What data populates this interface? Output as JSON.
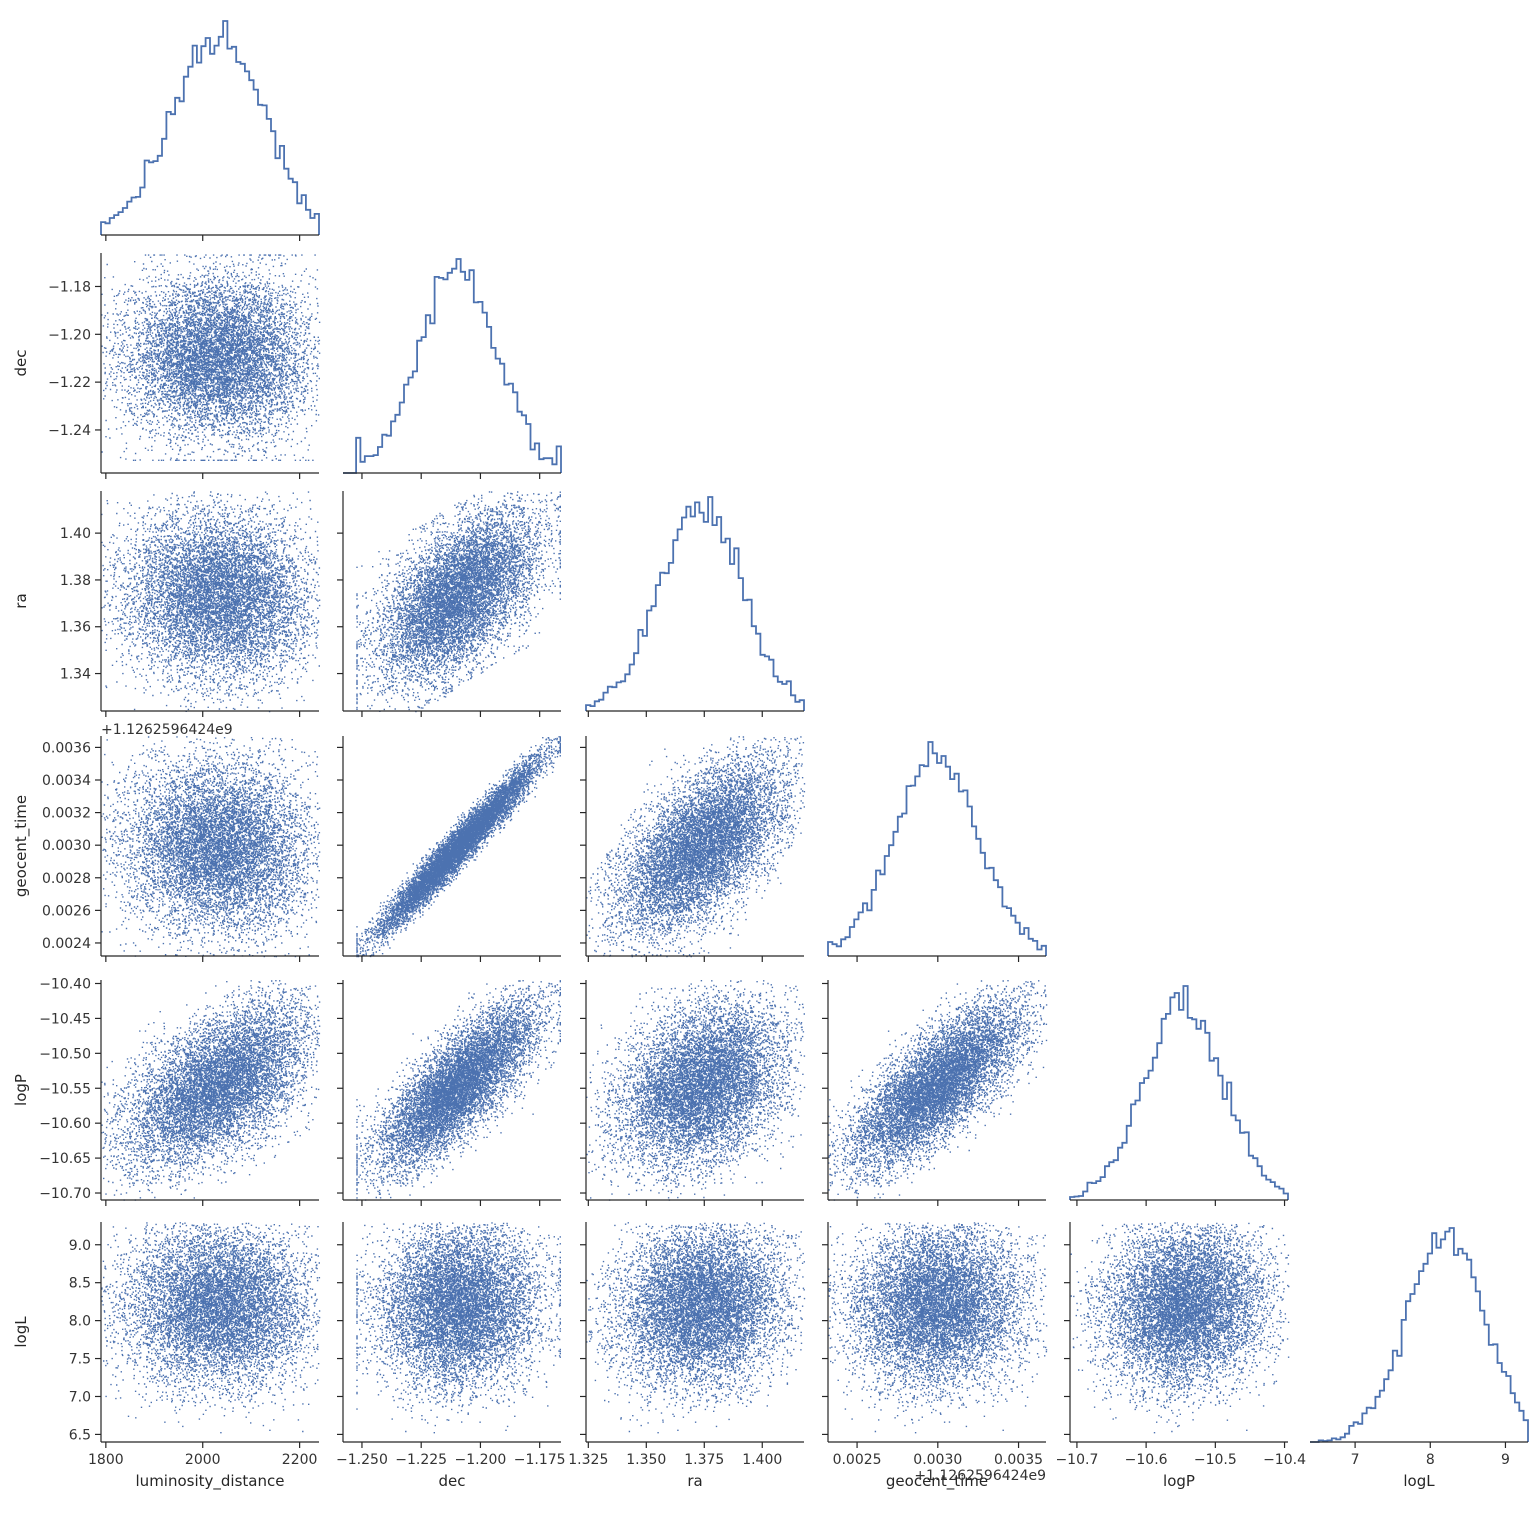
{
  "chart_data": {
    "type": "scatter",
    "title": "",
    "colors": {
      "series": "#4c72b0",
      "axis": "#262626"
    },
    "grid": false,
    "legend": "none",
    "variables": [
      {
        "name": "luminosity_distance",
        "label": "luminosity_distance",
        "range": [
          1790,
          2240
        ],
        "ticks": [
          1800,
          2000,
          2200
        ],
        "tick_labels": [
          "1800",
          "2000",
          "2200"
        ],
        "mean": 2030,
        "sd": 95,
        "offset_label": ""
      },
      {
        "name": "dec",
        "label": "dec",
        "range": [
          -1.258,
          -1.166
        ],
        "ticks": [
          -1.25,
          -1.225,
          -1.2,
          -1.175
        ],
        "tick_labels": [
          "−1.250",
          "−1.225",
          "−1.200",
          "−1.175"
        ],
        "y_ticks": [
          -1.24,
          -1.22,
          -1.2,
          -1.18
        ],
        "y_tick_labels": [
          "−1.24",
          "−1.22",
          "−1.20",
          "−1.18"
        ],
        "mean": -1.2095,
        "sd": 0.0165,
        "offset_label": ""
      },
      {
        "name": "ra",
        "label": "ra",
        "range": [
          1.324,
          1.418
        ],
        "ticks": [
          1.325,
          1.35,
          1.375,
          1.4
        ],
        "tick_labels": [
          "1.325",
          "1.350",
          "1.375",
          "1.400"
        ],
        "y_ticks": [
          1.34,
          1.36,
          1.38,
          1.4
        ],
        "y_tick_labels": [
          "1.34",
          "1.36",
          "1.38",
          "1.40"
        ],
        "mean": 1.3735,
        "sd": 0.0175,
        "offset_label": ""
      },
      {
        "name": "geocent_time",
        "label": "geocent_time",
        "range": [
          0.00232,
          0.00367
        ],
        "ticks": [
          0.0025,
          0.003,
          0.0035
        ],
        "tick_labels": [
          "0.0025",
          "0.0030",
          "0.0035"
        ],
        "y_ticks": [
          0.0024,
          0.0026,
          0.0028,
          0.003,
          0.0032,
          0.0034,
          0.0036
        ],
        "y_tick_labels": [
          "0.0024",
          "0.0026",
          "0.0028",
          "0.0030",
          "0.0032",
          "0.0034",
          "0.0036"
        ],
        "mean": 0.00299,
        "sd": 0.00026,
        "offset_label": "+1.1262596424e9"
      },
      {
        "name": "logP",
        "label": "logP",
        "range": [
          -10.71,
          -10.395
        ],
        "ticks": [
          -10.7,
          -10.6,
          -10.5,
          -10.4
        ],
        "tick_labels": [
          "−10.7",
          "−10.6",
          "−10.5",
          "−10.4"
        ],
        "y_ticks": [
          -10.7,
          -10.65,
          -10.6,
          -10.55,
          -10.5,
          -10.45,
          -10.4
        ],
        "y_tick_labels": [
          "−10.70",
          "−10.65",
          "−10.60",
          "−10.55",
          "−10.50",
          "−10.45",
          "−10.40"
        ],
        "mean": -10.545,
        "sd": 0.058,
        "offset_label": ""
      },
      {
        "name": "logL",
        "label": "logL",
        "range": [
          6.4,
          9.3
        ],
        "ticks": [
          7,
          8,
          9
        ],
        "tick_labels": [
          "7",
          "8",
          "9"
        ],
        "y_ticks": [
          6.5,
          7.0,
          7.5,
          8.0,
          8.5,
          9.0
        ],
        "y_tick_labels": [
          "6.5",
          "7.0",
          "7.5",
          "8.0",
          "8.5",
          "9.0"
        ],
        "mean": 8.2,
        "sd": 0.52,
        "offset_label": ""
      }
    ],
    "correlations": {
      "dec|luminosity_distance": 0.0,
      "ra|luminosity_distance": -0.05,
      "ra|dec": 0.55,
      "geocent_time|luminosity_distance": -0.05,
      "geocent_time|dec": 0.97,
      "geocent_time|ra": 0.58,
      "logP|luminosity_distance": 0.55,
      "logP|dec": 0.78,
      "logP|ra": 0.3,
      "logP|geocent_time": 0.75,
      "logL|luminosity_distance": 0.0,
      "logL|dec": 0.05,
      "logL|ra": 0.12,
      "logL|geocent_time": 0.05,
      "logL|logP": 0.1
    },
    "n_samples": 9000,
    "histogram_bins": 50
  }
}
